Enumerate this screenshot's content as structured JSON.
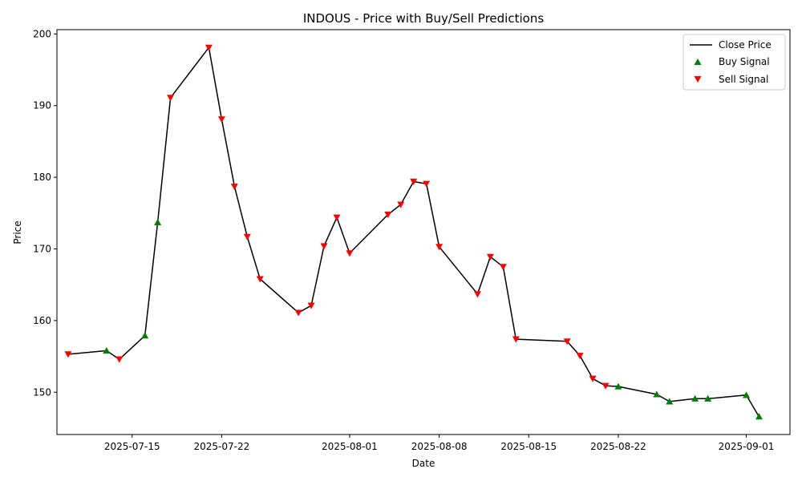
{
  "chart_data": {
    "type": "line",
    "title": "INDOUS - Price with Buy/Sell Predictions",
    "xlabel": "Date",
    "ylabel": "Price",
    "xlim": [
      "2025-07-09T03:00",
      "2025-09-04T10:00"
    ],
    "ylim": [
      144.1,
      200.6
    ],
    "grid": false,
    "legend_position": "top-right",
    "x_ticks": [
      "2025-07-15",
      "2025-07-22",
      "2025-08-01",
      "2025-08-08",
      "2025-08-15",
      "2025-08-22",
      "2025-09-01"
    ],
    "y_ticks": [
      150,
      160,
      170,
      180,
      190,
      200
    ],
    "series": [
      {
        "name": "Close Price",
        "kind": "line",
        "color": "#000000",
        "points": [
          {
            "x": "2025-07-10",
            "y": 155.3
          },
          {
            "x": "2025-07-13",
            "y": 155.8
          },
          {
            "x": "2025-07-14",
            "y": 154.6
          },
          {
            "x": "2025-07-16",
            "y": 157.9
          },
          {
            "x": "2025-07-17",
            "y": 173.7
          },
          {
            "x": "2025-07-18",
            "y": 191.1
          },
          {
            "x": "2025-07-21",
            "y": 198.1
          },
          {
            "x": "2025-07-22",
            "y": 188.1
          },
          {
            "x": "2025-07-23",
            "y": 178.7
          },
          {
            "x": "2025-07-24",
            "y": 171.7
          },
          {
            "x": "2025-07-25",
            "y": 165.8
          },
          {
            "x": "2025-07-28",
            "y": 161.1
          },
          {
            "x": "2025-07-29",
            "y": 162.1
          },
          {
            "x": "2025-07-30",
            "y": 170.4
          },
          {
            "x": "2025-07-31",
            "y": 174.4
          },
          {
            "x": "2025-08-01",
            "y": 169.4
          },
          {
            "x": "2025-08-04",
            "y": 174.8
          },
          {
            "x": "2025-08-05",
            "y": 176.2
          },
          {
            "x": "2025-08-06",
            "y": 179.4
          },
          {
            "x": "2025-08-07",
            "y": 179.1
          },
          {
            "x": "2025-08-08",
            "y": 170.3
          },
          {
            "x": "2025-08-11",
            "y": 163.7
          },
          {
            "x": "2025-08-12",
            "y": 168.9
          },
          {
            "x": "2025-08-13",
            "y": 167.5
          },
          {
            "x": "2025-08-14",
            "y": 157.4
          },
          {
            "x": "2025-08-18",
            "y": 157.1
          },
          {
            "x": "2025-08-19",
            "y": 155.1
          },
          {
            "x": "2025-08-20",
            "y": 151.9
          },
          {
            "x": "2025-08-21",
            "y": 150.9
          },
          {
            "x": "2025-08-22",
            "y": 150.8
          },
          {
            "x": "2025-08-25",
            "y": 149.7
          },
          {
            "x": "2025-08-26",
            "y": 148.7
          },
          {
            "x": "2025-08-28",
            "y": 149.1
          },
          {
            "x": "2025-08-29",
            "y": 149.1
          },
          {
            "x": "2025-09-01",
            "y": 149.6
          },
          {
            "x": "2025-09-02",
            "y": 146.6
          }
        ]
      },
      {
        "name": "Buy Signal",
        "kind": "scatter",
        "marker": "triangle-up",
        "color": "#008000",
        "points": [
          {
            "x": "2025-07-13",
            "y": 155.8
          },
          {
            "x": "2025-07-16",
            "y": 157.9
          },
          {
            "x": "2025-07-17",
            "y": 173.7
          },
          {
            "x": "2025-08-22",
            "y": 150.8
          },
          {
            "x": "2025-08-25",
            "y": 149.7
          },
          {
            "x": "2025-08-26",
            "y": 148.7
          },
          {
            "x": "2025-08-28",
            "y": 149.1
          },
          {
            "x": "2025-08-29",
            "y": 149.1
          },
          {
            "x": "2025-09-01",
            "y": 149.6
          },
          {
            "x": "2025-09-02",
            "y": 146.6
          }
        ]
      },
      {
        "name": "Sell Signal",
        "kind": "scatter",
        "marker": "triangle-down",
        "color": "#ff0000",
        "points": [
          {
            "x": "2025-07-10",
            "y": 155.3
          },
          {
            "x": "2025-07-14",
            "y": 154.6
          },
          {
            "x": "2025-07-18",
            "y": 191.1
          },
          {
            "x": "2025-07-21",
            "y": 198.1
          },
          {
            "x": "2025-07-22",
            "y": 188.1
          },
          {
            "x": "2025-07-23",
            "y": 178.7
          },
          {
            "x": "2025-07-24",
            "y": 171.7
          },
          {
            "x": "2025-07-25",
            "y": 165.8
          },
          {
            "x": "2025-07-28",
            "y": 161.1
          },
          {
            "x": "2025-07-29",
            "y": 162.1
          },
          {
            "x": "2025-07-30",
            "y": 170.4
          },
          {
            "x": "2025-07-31",
            "y": 174.4
          },
          {
            "x": "2025-08-01",
            "y": 169.4
          },
          {
            "x": "2025-08-04",
            "y": 174.8
          },
          {
            "x": "2025-08-05",
            "y": 176.2
          },
          {
            "x": "2025-08-06",
            "y": 179.4
          },
          {
            "x": "2025-08-07",
            "y": 179.1
          },
          {
            "x": "2025-08-08",
            "y": 170.3
          },
          {
            "x": "2025-08-11",
            "y": 163.7
          },
          {
            "x": "2025-08-12",
            "y": 168.9
          },
          {
            "x": "2025-08-13",
            "y": 167.5
          },
          {
            "x": "2025-08-14",
            "y": 157.4
          },
          {
            "x": "2025-08-18",
            "y": 157.1
          },
          {
            "x": "2025-08-19",
            "y": 155.1
          },
          {
            "x": "2025-08-20",
            "y": 151.9
          },
          {
            "x": "2025-08-21",
            "y": 150.9
          }
        ]
      }
    ]
  }
}
